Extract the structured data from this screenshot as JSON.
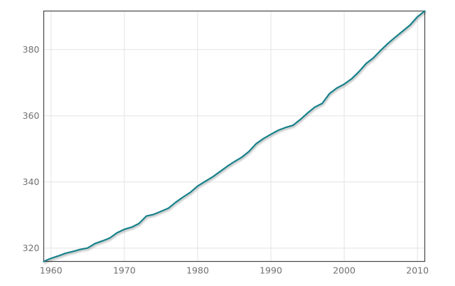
{
  "chart_data": {
    "type": "line",
    "title": "",
    "xlabel": "",
    "ylabel": "",
    "x": [
      1959,
      1960,
      1961,
      1962,
      1963,
      1964,
      1965,
      1966,
      1967,
      1968,
      1969,
      1970,
      1971,
      1972,
      1973,
      1974,
      1975,
      1976,
      1977,
      1978,
      1979,
      1980,
      1981,
      1982,
      1983,
      1984,
      1985,
      1986,
      1987,
      1988,
      1989,
      1990,
      1991,
      1992,
      1993,
      1994,
      1995,
      1996,
      1997,
      1998,
      1999,
      2000,
      2001,
      2002,
      2003,
      2004,
      2005,
      2006,
      2007,
      2008,
      2009,
      2010,
      2011
    ],
    "y": [
      315.97,
      316.91,
      317.64,
      318.45,
      318.99,
      319.62,
      320.04,
      321.38,
      322.16,
      323.04,
      324.62,
      325.68,
      326.32,
      327.45,
      329.68,
      330.18,
      331.11,
      332.04,
      333.83,
      335.4,
      336.84,
      338.75,
      340.11,
      341.45,
      343.05,
      344.65,
      346.12,
      347.42,
      349.19,
      351.57,
      353.12,
      354.39,
      355.61,
      356.45,
      357.1,
      358.83,
      360.82,
      362.61,
      363.73,
      366.7,
      368.38,
      369.55,
      371.14,
      373.28,
      375.8,
      377.52,
      379.8,
      381.9,
      383.79,
      385.6,
      387.43,
      389.9,
      391.65
    ],
    "xlim": [
      1959,
      2011
    ],
    "ylim": [
      315.97,
      391.65
    ],
    "xticks": {
      "values": [
        1960,
        1970,
        1980,
        1990,
        2000,
        2010
      ],
      "labels": [
        "1960",
        "1970",
        "1980",
        "1990",
        "2000",
        "2010"
      ]
    },
    "yticks": {
      "values": [
        320,
        340,
        360,
        380
      ],
      "labels": [
        "320",
        "340",
        "360",
        "380"
      ]
    },
    "grid": true,
    "legend": false,
    "colors": {
      "line": "#17808a",
      "frame": "#474747",
      "grid": "#e4e4e4",
      "tick_label": "#717171",
      "background": "#ffffff"
    }
  }
}
